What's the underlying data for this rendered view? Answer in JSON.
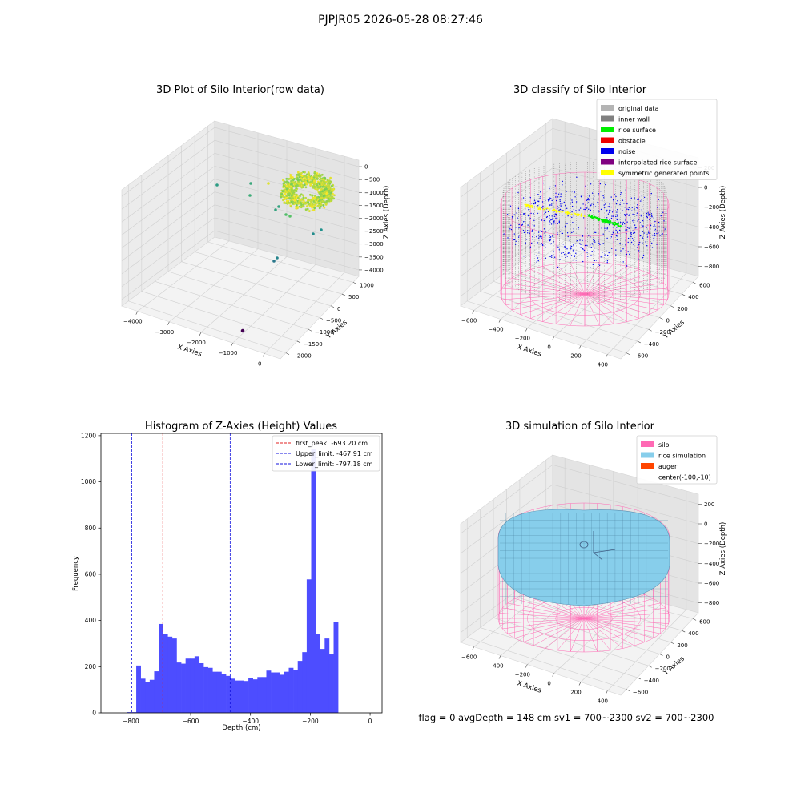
{
  "suptitle": "PJPJR05 2026-05-28 08:27:46",
  "footer_text": "flag = 0     avgDepth = 148 cm  sv1 = 700~2300  sv2 = 700~2300",
  "colors": {
    "hist_bar": "#4d4dff",
    "first_peak": "#e02020",
    "limits": "#1010dd",
    "silo": "#ff69b4",
    "rice_sim": "#87ceeb",
    "inner_wall": "#808080",
    "noise": "#0000ee",
    "rice_surface": "#00ee00",
    "symmetric": "#ffff00"
  },
  "chart_data": [
    {
      "type": "scatter",
      "is_3d": true,
      "title": "3D Plot of Silo Interior(row data)",
      "xlabel": "X Axies",
      "ylabel": "Y Axies",
      "zlabel": "Z Axies (Depth)",
      "x_ticks": [
        "−4000",
        "−3000",
        "−2000",
        "−1000",
        "0"
      ],
      "y_ticks": [
        "−2000",
        "−1500",
        "−1000",
        "−500",
        "0",
        "500",
        "1000"
      ],
      "z_ticks": [
        "0",
        "−500",
        "−1000",
        "−1500",
        "−2000",
        "−2500",
        "−3000",
        "−3500",
        "−4000"
      ],
      "colormap": "viridis",
      "grid": true
    },
    {
      "type": "scatter",
      "is_3d": true,
      "title": "3D classify of Silo Interior",
      "xlabel": "X Axies",
      "ylabel": "Y Axies",
      "zlabel": "Z Axies (Depth)",
      "x_ticks": [
        "−600",
        "−400",
        "−200",
        "0",
        "200",
        "400"
      ],
      "y_ticks": [
        "−600",
        "−400",
        "−200",
        "0",
        "200",
        "400",
        "600"
      ],
      "z_ticks": [
        "200",
        "0",
        "−200",
        "−400",
        "−600",
        "−800"
      ],
      "legend_position": "top-right",
      "legend": [
        {
          "label": "original data",
          "color": "#b4b4b4"
        },
        {
          "label": "inner wall",
          "color": "#808080"
        },
        {
          "label": "rice surface",
          "color": "#00ee00"
        },
        {
          "label": "obstacle",
          "color": "#ee0000"
        },
        {
          "label": "noise",
          "color": "#0000ee"
        },
        {
          "label": "interpolated rice surface",
          "color": "#800080"
        },
        {
          "label": "symmetric generated points",
          "color": "#ffff00"
        }
      ],
      "grid": true
    },
    {
      "type": "bar",
      "title": "Histogram of Z-Axies (Height) Values",
      "xlabel": "Depth (cm)",
      "ylabel": "Frequency",
      "xlim": [
        -900,
        40
      ],
      "ylim": [
        0,
        1210
      ],
      "x_ticks": [
        -800,
        -600,
        -400,
        -200,
        0
      ],
      "y_ticks": [
        0,
        200,
        400,
        600,
        800,
        1000,
        1200
      ],
      "bins": [
        {
          "start": -812,
          "end": -797,
          "value": 3
        },
        {
          "start": -797,
          "end": -782,
          "value": 3
        },
        {
          "start": -782,
          "end": -767,
          "value": 205
        },
        {
          "start": -767,
          "end": -752,
          "value": 148
        },
        {
          "start": -752,
          "end": -737,
          "value": 135
        },
        {
          "start": -737,
          "end": -722,
          "value": 143
        },
        {
          "start": -722,
          "end": -707,
          "value": 180
        },
        {
          "start": -707,
          "end": -692,
          "value": 385
        },
        {
          "start": -692,
          "end": -677,
          "value": 340
        },
        {
          "start": -677,
          "end": -662,
          "value": 330
        },
        {
          "start": -662,
          "end": -647,
          "value": 322
        },
        {
          "start": -647,
          "end": -632,
          "value": 218
        },
        {
          "start": -632,
          "end": -617,
          "value": 213
        },
        {
          "start": -617,
          "end": -602,
          "value": 235
        },
        {
          "start": -602,
          "end": -587,
          "value": 235
        },
        {
          "start": -587,
          "end": -572,
          "value": 245
        },
        {
          "start": -572,
          "end": -557,
          "value": 215
        },
        {
          "start": -557,
          "end": -542,
          "value": 198
        },
        {
          "start": -542,
          "end": -527,
          "value": 195
        },
        {
          "start": -527,
          "end": -512,
          "value": 178
        },
        {
          "start": -512,
          "end": -497,
          "value": 178
        },
        {
          "start": -497,
          "end": -482,
          "value": 168
        },
        {
          "start": -482,
          "end": -467,
          "value": 160
        },
        {
          "start": -467,
          "end": -452,
          "value": 148
        },
        {
          "start": -452,
          "end": -437,
          "value": 140
        },
        {
          "start": -437,
          "end": -422,
          "value": 140
        },
        {
          "start": -422,
          "end": -407,
          "value": 138
        },
        {
          "start": -407,
          "end": -392,
          "value": 150
        },
        {
          "start": -392,
          "end": -377,
          "value": 145
        },
        {
          "start": -377,
          "end": -362,
          "value": 155
        },
        {
          "start": -362,
          "end": -347,
          "value": 155
        },
        {
          "start": -347,
          "end": -332,
          "value": 183
        },
        {
          "start": -332,
          "end": -317,
          "value": 175
        },
        {
          "start": -317,
          "end": -302,
          "value": 175
        },
        {
          "start": -302,
          "end": -287,
          "value": 165
        },
        {
          "start": -287,
          "end": -272,
          "value": 178
        },
        {
          "start": -272,
          "end": -257,
          "value": 195
        },
        {
          "start": -257,
          "end": -242,
          "value": 185
        },
        {
          "start": -242,
          "end": -227,
          "value": 225
        },
        {
          "start": -227,
          "end": -212,
          "value": 263
        },
        {
          "start": -212,
          "end": -197,
          "value": 578
        },
        {
          "start": -197,
          "end": -182,
          "value": 1140
        },
        {
          "start": -182,
          "end": -167,
          "value": 340
        },
        {
          "start": -167,
          "end": -152,
          "value": 277
        },
        {
          "start": -152,
          "end": -137,
          "value": 322
        },
        {
          "start": -137,
          "end": -122,
          "value": 253
        },
        {
          "start": -122,
          "end": -107,
          "value": 393
        }
      ],
      "vlines": [
        {
          "label": "first_peak: -693.20 cm",
          "x": -693.2,
          "color": "#e02020"
        },
        {
          "label": "Upper_limit: -467.91 cm",
          "x": -467.91,
          "color": "#1010dd"
        },
        {
          "label": "Lower_limit: -797.18 cm",
          "x": -797.18,
          "color": "#1010dd"
        }
      ],
      "legend_position": "top-right",
      "grid": false
    },
    {
      "type": "surface",
      "is_3d": true,
      "title": "3D simulation of Silo Interior",
      "xlabel": "X Axies",
      "ylabel": "Y Axies",
      "zlabel": "Z Axies (Depth)",
      "x_ticks": [
        "−600",
        "−400",
        "−200",
        "0",
        "200",
        "400"
      ],
      "y_ticks": [
        "−600",
        "−400",
        "−200",
        "0",
        "200",
        "400",
        "600"
      ],
      "z_ticks": [
        "200",
        "0",
        "−200",
        "−400",
        "−600",
        "−800"
      ],
      "legend_position": "top-right",
      "legend": [
        {
          "label": "silo",
          "color": "#ff69b4"
        },
        {
          "label": "rice simulation",
          "color": "#87ceeb"
        },
        {
          "label": "auger",
          "color": "#ff4500"
        },
        {
          "label": "center(-100,-10)",
          "color": ""
        }
      ],
      "grid": true
    }
  ]
}
